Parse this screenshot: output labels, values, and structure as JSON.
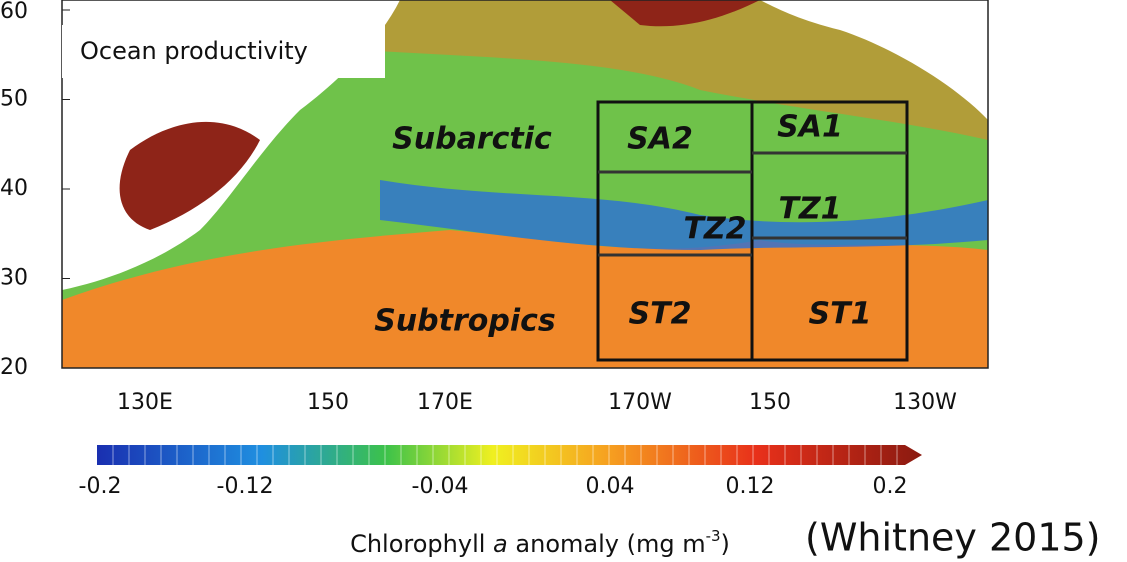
{
  "map": {
    "inset_label": "Ocean productivity",
    "lat_ticks": [
      60,
      50,
      40,
      30,
      20
    ],
    "lon_ticks": [
      "130E",
      "150",
      "170E",
      "170W",
      "150",
      "130W"
    ],
    "region_labels": [
      "Subarctic",
      "Subtropics",
      "SA2",
      "SA1",
      "TZ2",
      "TZ1",
      "ST2",
      "ST1"
    ]
  },
  "colorbar": {
    "ticks": [
      -0.2,
      -0.12,
      -0.04,
      0.04,
      0.12,
      0.2
    ],
    "caption": [
      "Chlorophyll",
      "a",
      "anomaly (mg m",
      "-3",
      ")"
    ]
  },
  "citation": "(Whitney 2015)"
}
